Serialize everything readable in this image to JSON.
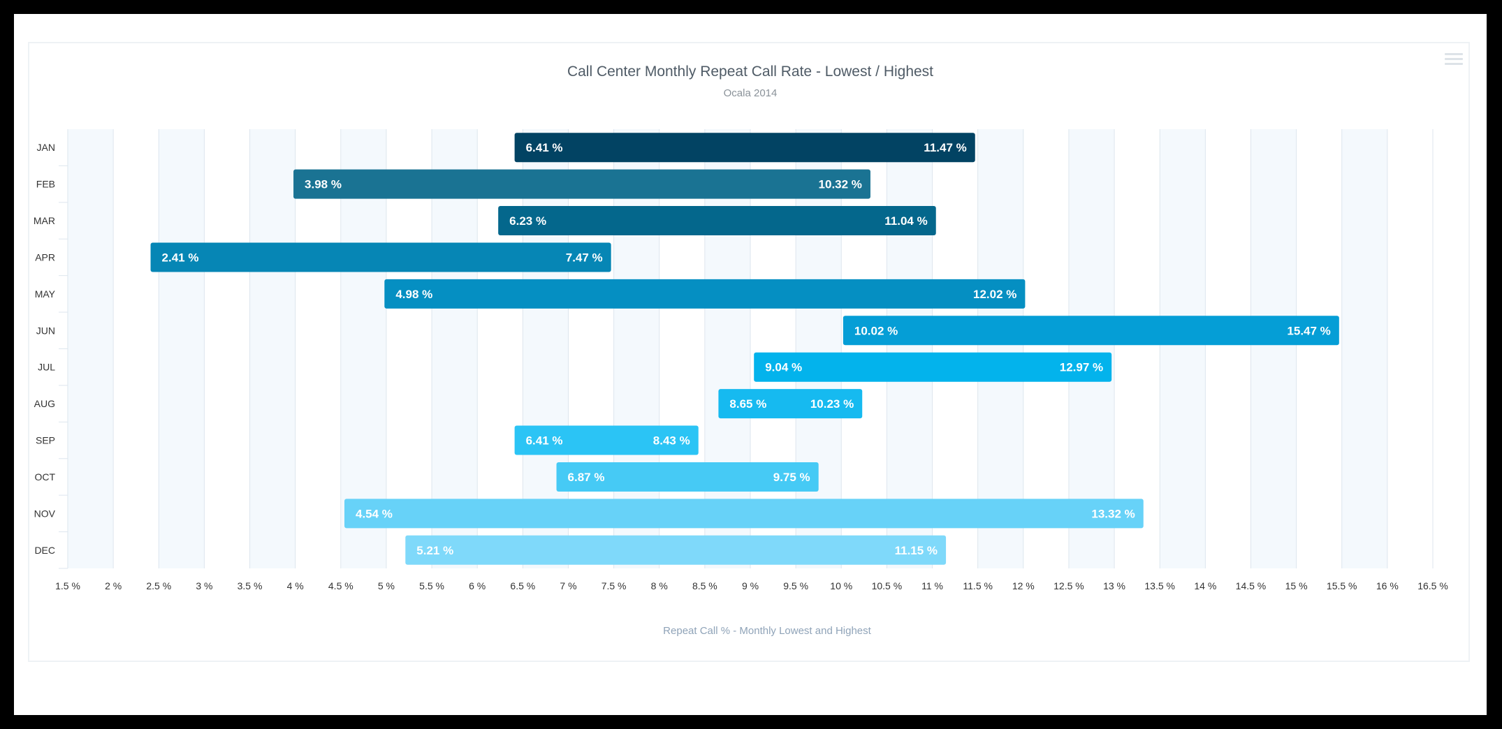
{
  "chart_data": {
    "type": "bar",
    "orientation": "horizontal",
    "subtype": "range",
    "title": "Call Center Monthly Repeat Call Rate - Lowest / Highest",
    "subtitle": "Ocala 2014",
    "xlabel": "Repeat Call % - Monthly Lowest and Highest",
    "ylabel": "",
    "xlim": [
      1.5,
      16.5
    ],
    "x_tick_step": 0.5,
    "x_tick_suffix": " %",
    "value_suffix": " %",
    "grid": "alternating vertical bands",
    "legend": "none",
    "categories": [
      "JAN",
      "FEB",
      "MAR",
      "APR",
      "MAY",
      "JUN",
      "JUL",
      "AUG",
      "SEP",
      "OCT",
      "NOV",
      "DEC"
    ],
    "series": [
      {
        "low": 6.41,
        "high": 11.47,
        "label_low": "6.41 %",
        "label_high": "11.47 %"
      },
      {
        "low": 3.98,
        "high": 10.32,
        "label_low": "3.98 %",
        "label_high": "10.32 %"
      },
      {
        "low": 6.23,
        "high": 11.04,
        "label_low": "6.23 %",
        "label_high": "11.04 %"
      },
      {
        "low": 2.41,
        "high": 7.47,
        "label_low": "2.41 %",
        "label_high": "7.47 %"
      },
      {
        "low": 4.98,
        "high": 12.02,
        "label_low": "4.98 %",
        "label_high": "12.02 %"
      },
      {
        "low": 10.02,
        "high": 15.47,
        "label_low": "10.02 %",
        "label_high": "15.47 %"
      },
      {
        "low": 9.04,
        "high": 12.97,
        "label_low": "9.04 %",
        "label_high": "12.97 %"
      },
      {
        "low": 8.65,
        "high": 10.23,
        "label_low": "8.65 %",
        "label_high": "10.23 %"
      },
      {
        "low": 6.41,
        "high": 8.43,
        "label_low": "6.41 %",
        "label_high": "8.43 %"
      },
      {
        "low": 6.87,
        "high": 9.75,
        "label_low": "6.87 %",
        "label_high": "9.75 %"
      },
      {
        "low": 4.54,
        "high": 13.32,
        "label_low": "4.54 %",
        "label_high": "13.32 %"
      },
      {
        "low": 5.21,
        "high": 11.15,
        "label_low": "5.21 %",
        "label_high": "11.15 %"
      }
    ],
    "colors": [
      "#024363",
      "#1a7393",
      "#04678c",
      "#0686b5",
      "#058fc2",
      "#059ed6",
      "#03b3ec",
      "#16baf0",
      "#2bc4f5",
      "#46caf5",
      "#67d2f8",
      "#7fd9fa"
    ],
    "colors_text": "#ffffff",
    "band_color": "#f4f9fd",
    "grid_color": "#dde6ee",
    "title_color": "#4f5b66",
    "subtitle_color": "#8a9299",
    "axis_title_color": "#8fa3b8",
    "tick_color": "#333333"
  },
  "menu": {
    "icon": "hamburger-menu-icon"
  }
}
